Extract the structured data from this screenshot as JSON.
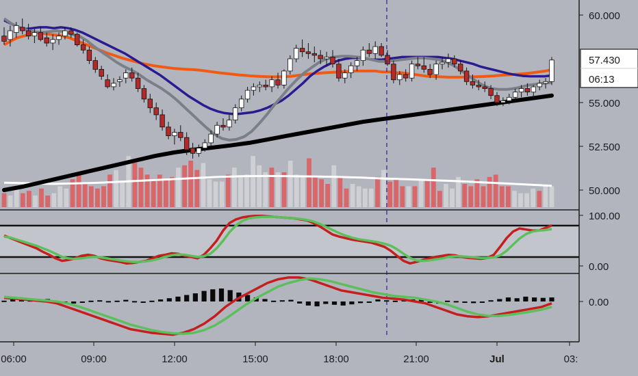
{
  "colors": {
    "background": "#b2b5be",
    "up_candle": "#ffffff",
    "down_candle": "#b22a2a",
    "ema_orange": "#f05a14",
    "ema_navy": "#2c1a90",
    "ema_gray": "#7b7f88",
    "sma_black": "#000000",
    "volume_ma": "#ffffff",
    "vol_up": "#cfd0d4",
    "vol_down": "#d9676a",
    "osc_red": "#c41e1e",
    "osc_green": "#5cbf5c",
    "text": "#1c1c1c"
  },
  "chart_data": {
    "type": "candlestick",
    "price_axis": {
      "ticks": [
        "60.000",
        "55.000",
        "52.500",
        "50.000"
      ],
      "current_price": "57.430",
      "countdown": "06:13"
    },
    "stoch_axis": {
      "ticks": [
        "100.00",
        "0.00"
      ],
      "overbought": 80,
      "oversold": 20
    },
    "macd_axis": {
      "ticks": [
        "0.00"
      ]
    },
    "x_axis": {
      "ticks": [
        "06:00",
        "09:00",
        "12:00",
        "15:00",
        "18:00",
        "21:00",
        "Jul",
        "03:"
      ]
    },
    "candles": [
      [
        58.8,
        59.3,
        58.3,
        58.5
      ],
      [
        58.6,
        59.4,
        58.2,
        59.1
      ],
      [
        59.0,
        59.6,
        58.7,
        59.4
      ],
      [
        59.3,
        59.8,
        58.9,
        59.1
      ],
      [
        59.1,
        59.5,
        58.6,
        58.8
      ],
      [
        58.8,
        59.2,
        58.4,
        59.0
      ],
      [
        59.0,
        59.3,
        58.5,
        58.6
      ],
      [
        58.7,
        59.0,
        58.2,
        58.4
      ],
      [
        58.4,
        58.9,
        58.0,
        58.6
      ],
      [
        58.6,
        59.0,
        58.3,
        58.8
      ],
      [
        58.8,
        59.3,
        58.6,
        59.1
      ],
      [
        59.1,
        59.3,
        58.7,
        58.9
      ],
      [
        58.9,
        59.0,
        58.2,
        58.3
      ],
      [
        58.3,
        58.6,
        57.8,
        58.0
      ],
      [
        58.0,
        58.2,
        57.2,
        57.4
      ],
      [
        57.4,
        57.6,
        56.7,
        56.9
      ],
      [
        56.9,
        57.1,
        56.3,
        56.5
      ],
      [
        56.3,
        56.6,
        55.8,
        55.9
      ],
      [
        55.9,
        56.4,
        55.7,
        56.1
      ],
      [
        56.2,
        56.5,
        55.9,
        56.3
      ],
      [
        56.4,
        56.9,
        56.1,
        56.7
      ],
      [
        56.7,
        57.0,
        56.2,
        56.4
      ],
      [
        56.4,
        56.7,
        55.6,
        55.8
      ],
      [
        55.8,
        56.0,
        55.0,
        55.2
      ],
      [
        55.2,
        55.5,
        54.4,
        54.7
      ],
      [
        54.7,
        55.0,
        54.0,
        54.3
      ],
      [
        54.3,
        54.6,
        53.4,
        53.6
      ],
      [
        53.6,
        53.9,
        52.9,
        53.1
      ],
      [
        53.1,
        53.5,
        52.6,
        53.3
      ],
      [
        53.3,
        53.7,
        52.8,
        53.0
      ],
      [
        53.0,
        53.3,
        52.0,
        52.3
      ],
      [
        52.4,
        52.7,
        51.8,
        52.1
      ],
      [
        52.1,
        52.6,
        51.9,
        52.4
      ],
      [
        52.4,
        52.9,
        52.2,
        52.7
      ],
      [
        52.7,
        53.4,
        52.5,
        53.2
      ],
      [
        53.2,
        53.9,
        53.0,
        53.7
      ],
      [
        53.7,
        54.1,
        53.4,
        53.6
      ],
      [
        53.6,
        54.3,
        53.4,
        54.0
      ],
      [
        54.0,
        54.9,
        53.8,
        54.7
      ],
      [
        54.7,
        55.4,
        54.5,
        55.2
      ],
      [
        55.2,
        55.9,
        55.0,
        55.7
      ],
      [
        55.7,
        56.1,
        55.4,
        55.9
      ],
      [
        55.9,
        56.2,
        55.6,
        56.0
      ],
      [
        56.0,
        56.3,
        55.7,
        55.9
      ],
      [
        55.9,
        56.5,
        55.6,
        56.3
      ],
      [
        56.3,
        56.7,
        55.8,
        56.0
      ],
      [
        56.0,
        56.9,
        55.8,
        56.8
      ],
      [
        56.8,
        57.7,
        56.6,
        57.5
      ],
      [
        57.5,
        58.3,
        57.3,
        58.1
      ],
      [
        58.1,
        58.6,
        57.6,
        57.9
      ],
      [
        57.9,
        58.4,
        57.5,
        57.8
      ],
      [
        57.8,
        58.2,
        57.3,
        57.7
      ],
      [
        57.7,
        58.0,
        57.2,
        57.5
      ],
      [
        57.5,
        57.9,
        57.1,
        57.6
      ],
      [
        57.6,
        58.0,
        57.0,
        57.2
      ],
      [
        57.2,
        57.5,
        56.2,
        56.4
      ],
      [
        56.4,
        56.9,
        56.1,
        56.7
      ],
      [
        56.7,
        57.3,
        56.4,
        57.1
      ],
      [
        57.1,
        57.6,
        56.8,
        57.4
      ],
      [
        57.4,
        58.2,
        57.1,
        58.0
      ],
      [
        58.0,
        58.4,
        57.6,
        57.8
      ],
      [
        57.8,
        58.5,
        57.5,
        58.2
      ],
      [
        58.2,
        58.4,
        57.6,
        57.7
      ],
      [
        57.7,
        58.0,
        57.1,
        57.2
      ],
      [
        57.2,
        57.4,
        56.1,
        56.3
      ],
      [
        56.3,
        56.8,
        56.0,
        56.6
      ],
      [
        56.6,
        56.9,
        56.2,
        56.4
      ],
      [
        56.4,
        57.4,
        56.2,
        57.2
      ],
      [
        57.2,
        57.6,
        56.9,
        57.1
      ],
      [
        57.1,
        57.6,
        56.7,
        56.9
      ],
      [
        56.9,
        57.2,
        56.4,
        56.6
      ],
      [
        56.6,
        57.4,
        56.3,
        57.2
      ],
      [
        57.2,
        57.6,
        56.9,
        57.3
      ],
      [
        57.3,
        57.8,
        57.0,
        57.5
      ],
      [
        57.5,
        57.7,
        57.0,
        57.2
      ],
      [
        57.2,
        57.4,
        56.6,
        56.8
      ],
      [
        56.8,
        57.0,
        56.0,
        56.2
      ],
      [
        56.2,
        56.6,
        55.8,
        56.0
      ],
      [
        56.0,
        56.3,
        55.7,
        55.9
      ],
      [
        55.9,
        56.2,
        55.6,
        55.8
      ],
      [
        55.8,
        56.0,
        55.2,
        55.4
      ],
      [
        55.4,
        55.6,
        54.8,
        55.0
      ],
      [
        55.0,
        55.3,
        54.8,
        55.1
      ],
      [
        55.1,
        55.5,
        54.9,
        55.3
      ],
      [
        55.3,
        55.8,
        55.1,
        55.6
      ],
      [
        55.6,
        56.0,
        55.3,
        55.8
      ],
      [
        55.8,
        56.1,
        55.4,
        55.6
      ],
      [
        55.6,
        56.0,
        55.3,
        55.9
      ],
      [
        55.9,
        56.3,
        55.7,
        56.1
      ],
      [
        56.1,
        56.4,
        55.8,
        56.2
      ],
      [
        56.2,
        57.6,
        56.0,
        57.43
      ]
    ],
    "ema_orange": [
      58.3,
      58.5,
      58.7,
      58.8,
      58.9,
      59.0,
      58.95,
      58.9,
      58.85,
      58.8,
      58.7,
      58.55,
      58.4,
      58.25,
      58.1,
      57.95,
      57.8,
      57.68,
      57.55,
      57.45,
      57.35,
      57.25,
      57.17,
      57.1,
      57.05,
      57.0,
      56.95,
      56.92,
      56.9,
      56.88,
      56.85,
      56.8,
      56.75,
      56.7,
      56.66,
      56.62,
      56.58,
      56.55,
      56.52,
      56.5,
      56.48,
      56.47,
      56.47,
      56.48,
      56.5,
      56.55,
      56.6,
      56.64,
      56.67,
      56.7,
      56.72,
      56.74,
      56.76,
      56.78,
      56.8,
      56.8,
      56.8,
      56.8,
      56.75,
      56.75,
      56.7,
      56.7,
      56.65,
      56.6,
      56.55,
      56.5,
      56.48,
      56.47,
      56.45,
      56.45,
      56.45,
      56.46,
      56.47,
      56.48,
      56.5,
      56.52,
      56.55,
      56.58,
      56.6,
      56.63,
      56.66,
      56.7,
      56.75,
      56.8,
      56.88
    ],
    "ema_navy": [
      59.7,
      59.5,
      59.3,
      59.2,
      59.25,
      59.3,
      59.3,
      59.25,
      59.3,
      59.25,
      59.15,
      59.0,
      58.8,
      58.6,
      58.4,
      58.2,
      58.0,
      57.8,
      57.55,
      57.3,
      57.05,
      56.8,
      56.55,
      56.25,
      55.95,
      55.65,
      55.35,
      55.1,
      54.85,
      54.65,
      54.5,
      54.4,
      54.35,
      54.35,
      54.4,
      54.45,
      54.55,
      54.7,
      54.9,
      55.1,
      55.4,
      55.75,
      56.1,
      56.5,
      56.8,
      57.05,
      57.25,
      57.4,
      57.5,
      57.55,
      57.55,
      57.5,
      57.45,
      57.45,
      57.5,
      57.55,
      57.6,
      57.6,
      57.6,
      57.6,
      57.6,
      57.6,
      57.55,
      57.5,
      57.4,
      57.3,
      57.2,
      57.05,
      56.95,
      56.85,
      56.75,
      56.65,
      56.58,
      56.52,
      56.5,
      56.5,
      56.5,
      56.55
    ],
    "ema_gray": [
      59.8,
      59.5,
      59.3,
      59.15,
      59.05,
      59.0,
      59.05,
      59.1,
      59.05,
      58.9,
      58.8,
      58.55,
      58.2,
      57.9,
      57.6,
      57.3,
      57.05,
      56.85,
      56.6,
      56.3,
      56.05,
      55.8,
      55.5,
      55.15,
      54.75,
      54.35,
      53.95,
      53.55,
      53.2,
      52.95,
      52.85,
      52.9,
      53.05,
      53.35,
      53.8,
      54.3,
      54.85,
      55.35,
      55.85,
      56.3,
      56.7,
      57.0,
      57.3,
      57.5,
      57.6,
      57.65,
      57.65,
      57.6,
      57.55,
      57.45,
      57.35,
      57.35,
      57.4,
      57.45,
      57.5,
      57.55,
      57.55,
      57.5,
      57.45,
      57.3,
      57.1,
      56.8,
      56.5,
      56.2,
      55.95,
      55.8,
      55.75,
      55.75,
      55.8,
      55.9,
      56.0,
      56.05,
      56.1,
      56.15
    ],
    "sma_black": [
      50.0,
      50.2,
      50.45,
      50.7,
      50.95,
      51.2,
      51.45,
      51.7,
      51.95,
      52.15,
      52.3,
      52.42,
      52.55,
      52.7,
      52.9,
      53.1,
      53.3,
      53.5,
      53.7,
      53.9,
      54.05,
      54.2,
      54.35,
      54.5,
      54.65,
      54.8,
      54.95,
      55.1,
      55.25,
      55.4
    ],
    "volume": [
      6,
      5,
      9,
      6,
      7,
      5,
      8,
      5,
      6,
      9,
      8,
      12,
      14,
      10,
      9,
      8,
      9,
      14,
      16,
      11,
      22,
      19,
      17,
      14,
      12,
      14,
      12,
      13,
      17,
      18,
      20,
      16,
      19,
      12,
      11,
      11,
      14,
      17,
      13,
      14,
      22,
      18,
      15,
      17,
      15,
      15,
      20,
      14,
      13,
      21,
      13,
      12,
      10,
      18,
      13,
      8,
      10,
      9,
      8,
      8,
      13,
      16,
      11,
      12,
      9,
      9,
      9,
      12,
      12,
      17,
      7,
      10,
      8,
      13,
      10,
      9,
      12,
      9,
      13,
      14,
      9,
      9,
      7,
      6,
      6,
      8,
      7,
      9,
      9
    ],
    "volume_ma": [
      10.5,
      10.3,
      10.0,
      10.2,
      10.5,
      11.0,
      11.5,
      12.0,
      12.5,
      13.0,
      13.3,
      13.4,
      13.3,
      13.2,
      13.0,
      12.7,
      12.3,
      12.0,
      11.6,
      11.2,
      10.7,
      10.2,
      9.7,
      9.2
    ],
    "stoch_k": [
      60,
      55,
      50,
      45,
      40,
      35,
      28,
      22,
      15,
      10,
      12,
      15,
      20,
      22,
      20,
      15,
      12,
      10,
      8,
      5,
      6,
      8,
      10,
      15,
      20,
      22,
      25,
      24,
      20,
      18,
      15,
      22,
      35,
      50,
      70,
      85,
      92,
      96,
      98,
      99,
      99,
      98,
      97,
      96,
      95,
      94,
      92,
      90,
      85,
      78,
      70,
      62,
      58,
      55,
      52,
      50,
      48,
      46,
      42,
      38,
      30,
      20,
      10,
      5,
      8,
      12,
      15,
      18,
      20,
      22,
      21,
      18,
      16,
      15,
      14,
      16,
      22,
      38,
      55,
      68,
      74,
      72,
      70,
      70,
      75,
      80
    ],
    "stoch_d": [
      58,
      56,
      52,
      48,
      44,
      40,
      35,
      30,
      24,
      18,
      15,
      14,
      15,
      17,
      18,
      17,
      15,
      13,
      11,
      9,
      8,
      8,
      9,
      11,
      14,
      18,
      21,
      23,
      22,
      20,
      18,
      19,
      24,
      35,
      50,
      67,
      80,
      89,
      94,
      96,
      97,
      97,
      97,
      96,
      95,
      94,
      93,
      91,
      88,
      83,
      77,
      71,
      65,
      60,
      56,
      53,
      51,
      49,
      47,
      44,
      40,
      33,
      24,
      16,
      11,
      10,
      11,
      13,
      15,
      18,
      19,
      19,
      18,
      17,
      16,
      16,
      17,
      21,
      30,
      42,
      54,
      63,
      68,
      70,
      71,
      73
    ],
    "macd": [
      0.2,
      0.15,
      0.1,
      0.05,
      0.0,
      -0.1,
      -0.3,
      -0.5,
      -0.7,
      -0.9,
      -1.1,
      -1.3,
      -1.5,
      -1.6,
      -1.7,
      -1.75,
      -1.8,
      -1.7,
      -1.5,
      -1.2,
      -0.8,
      -0.3,
      0.1,
      0.4,
      0.7,
      1.0,
      1.2,
      1.3,
      1.3,
      1.2,
      1.0,
      0.8,
      0.6,
      0.5,
      0.4,
      0.3,
      0.2,
      0.15,
      0.1,
      0.0,
      -0.1,
      -0.3,
      -0.5,
      -0.7,
      -0.8,
      -0.85,
      -0.8,
      -0.7,
      -0.6,
      -0.5,
      -0.4,
      -0.3,
      -0.1
    ],
    "macd_signal": [
      0.25,
      0.2,
      0.15,
      0.1,
      0.05,
      0.0,
      -0.1,
      -0.25,
      -0.45,
      -0.65,
      -0.85,
      -1.05,
      -1.25,
      -1.4,
      -1.55,
      -1.65,
      -1.72,
      -1.75,
      -1.7,
      -1.55,
      -1.3,
      -0.95,
      -0.55,
      -0.15,
      0.2,
      0.5,
      0.8,
      1.0,
      1.15,
      1.25,
      1.2,
      1.1,
      0.95,
      0.8,
      0.65,
      0.5,
      0.4,
      0.3,
      0.25,
      0.2,
      0.1,
      0.0,
      -0.15,
      -0.35,
      -0.55,
      -0.7,
      -0.78,
      -0.78,
      -0.72,
      -0.64,
      -0.55,
      -0.45,
      -0.3
    ],
    "macd_hist": [
      0.02,
      0.05,
      0.05,
      0.03,
      0.04,
      0.06,
      0.02,
      -0.02,
      -0.05,
      -0.03,
      0.02,
      0.03,
      0.01,
      0.02,
      0.04,
      0.01,
      -0.03,
      0.02,
      0.05,
      0.08,
      0.12,
      0.16,
      0.2,
      0.26,
      0.3,
      0.32,
      0.28,
      0.22,
      0.16,
      0.1,
      0.06,
      0.02,
      0.03,
      0.04,
      -0.05,
      -0.1,
      -0.12,
      -0.06,
      -0.08,
      -0.1,
      -0.07,
      -0.04,
      -0.03,
      0.05,
      0.03,
      0.02,
      0.06,
      0.05,
      0.04,
      -0.03,
      -0.05,
      0.02,
      0.01,
      -0.02,
      -0.04,
      -0.02,
      0.03,
      0.06,
      0.1,
      0.08,
      0.12,
      0.1,
      0.09,
      0.1
    ],
    "grid": false
  }
}
